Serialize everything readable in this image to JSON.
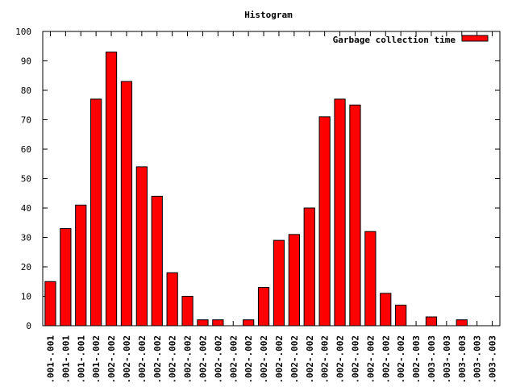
{
  "chart_data": {
    "type": "bar",
    "title": "Histogram",
    "xlabel": "",
    "ylabel": "",
    "ylim": [
      0,
      100
    ],
    "yticks": [
      0,
      10,
      20,
      30,
      40,
      50,
      60,
      70,
      80,
      90,
      100
    ],
    "grid": false,
    "legend_position": "top-right",
    "bar_color": "#ff0000",
    "bar_edge_color": "#000000",
    "categories": [
      ".001-.001",
      ".001-.001",
      ".001-.001",
      ".001-.002",
      ".002-.002",
      ".002-.002",
      ".002-.002",
      ".002-.002",
      ".002-.002",
      ".002-.002",
      ".002-.002",
      ".002-.002",
      ".002-.002",
      ".002-.002",
      ".002-.002",
      ".002-.002",
      ".002-.002",
      ".002-.002",
      ".002-.002",
      ".002-.002",
      ".002-.002",
      ".002-.002",
      ".002-.002",
      ".002-.002",
      ".002-.003",
      ".003-.003",
      ".003-.003",
      ".003-.003",
      ".003-.003",
      ".003-.003"
    ],
    "series": [
      {
        "name": "Garbage collection time",
        "values": [
          15,
          33,
          41,
          77,
          93,
          83,
          54,
          44,
          18,
          10,
          2,
          2,
          0,
          2,
          13,
          29,
          31,
          40,
          71,
          77,
          75,
          32,
          11,
          7,
          0,
          3,
          0,
          2,
          0,
          0
        ]
      }
    ]
  }
}
